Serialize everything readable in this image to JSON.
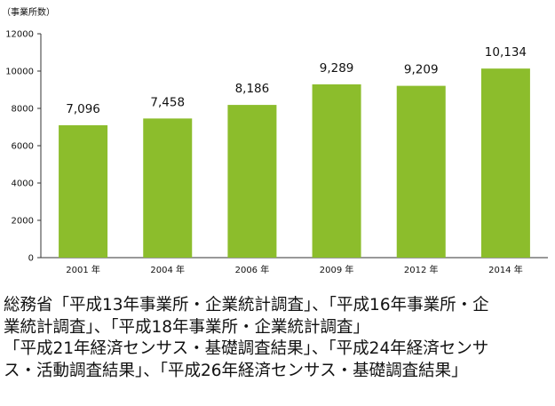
{
  "chart_data": {
    "type": "bar",
    "title": "",
    "ylabel": "（事業所数）",
    "xlabel": "",
    "categories": [
      "2001 年",
      "2004 年",
      "2006 年",
      "2009 年",
      "2012 年",
      "2014 年"
    ],
    "values": [
      7096,
      7458,
      8186,
      9289,
      9209,
      10134
    ],
    "data_labels": [
      "7,096",
      "7,458",
      "8,186",
      "9,289",
      "9,209",
      "10,134"
    ],
    "ylim": [
      0,
      12000
    ],
    "yticks": [
      0,
      2000,
      4000,
      6000,
      8000,
      10000,
      12000
    ],
    "ytick_labels": [
      "0",
      "2000",
      "4000",
      "6000",
      "8000",
      "10000",
      "12000"
    ],
    "grid": false,
    "legend": "none",
    "bar_color": "#8cbd2c"
  },
  "source": {
    "lines": [
      "総務省「平成13年事業所・企業統計調査」、「平成16年事業所・企",
      "業統計調査」、「平成18年事業所・企業統計調査」",
      "「平成21年経済センサス・基礎調査結果」、「平成24年経済センサ",
      "ス・活動調査結果」、「平成26年経済センサス・基礎調査結果」"
    ]
  }
}
